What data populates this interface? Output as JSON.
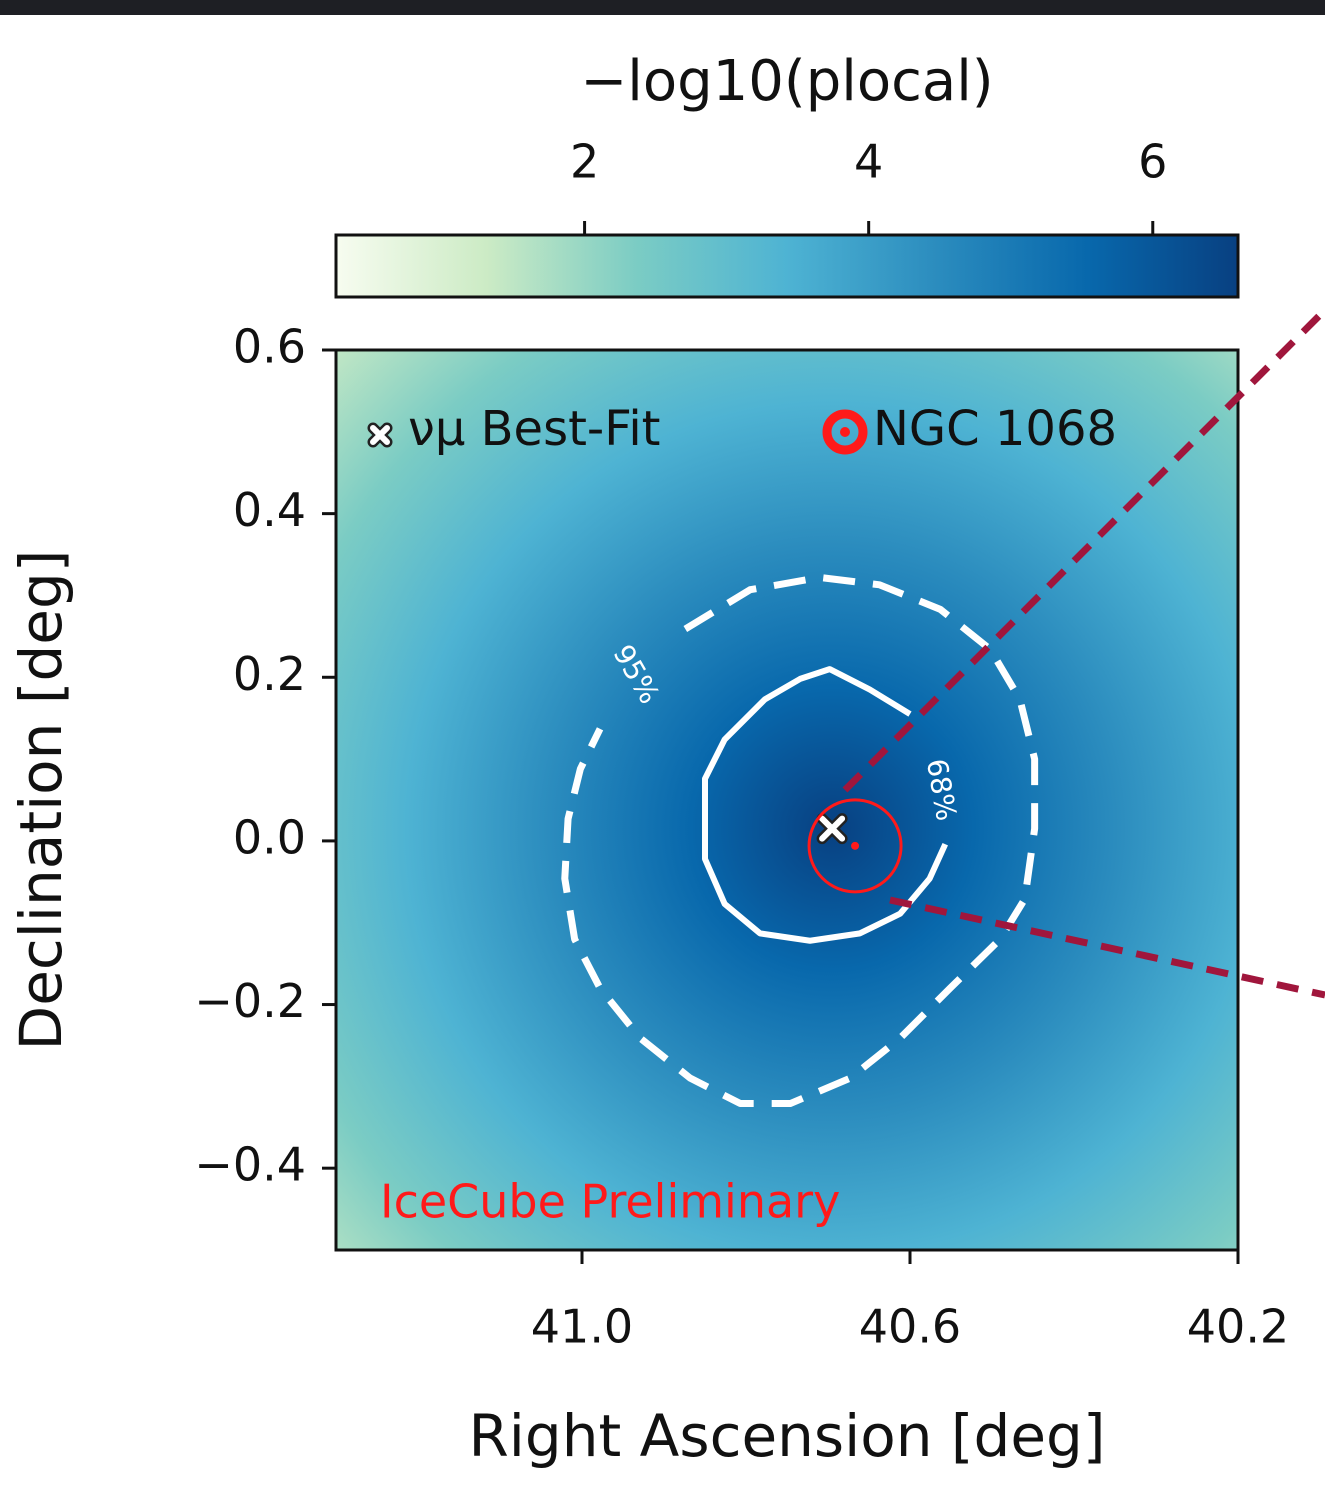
{
  "chart_data": {
    "type": "contour",
    "xlabel": "Right Ascension [deg]",
    "ylabel": "Declination [deg]",
    "xlim": [
      41.3,
      40.2
    ],
    "ylim": [
      -0.5,
      0.6
    ],
    "xticks": [
      {
        "value": 41,
        "label": "41.0"
      },
      40.6,
      40.2
    ],
    "yticks": [
      0.6,
      0.4,
      0.2,
      {
        "value": 0,
        "label": "0.0"
      },
      {
        "value": -0.2,
        "label": "−0.2"
      },
      {
        "value": -0.4,
        "label": "−0.4"
      }
    ],
    "colorbar": {
      "label": "−log10(plocal)",
      "lim": [
        0.25,
        6.6
      ],
      "ticks": [
        2,
        4,
        6
      ],
      "colors": [
        "#f7fcf0",
        "#ccebc5",
        "#7bccc4",
        "#4eb3d3",
        "#2b8cbe",
        "#0868ac",
        "#084081"
      ]
    },
    "contours": [
      {
        "label": "68%",
        "style": "solid",
        "color": "#ffffff",
        "x": [
          40.557,
          40.576,
          40.612,
          40.661,
          40.722,
          40.783,
          40.826,
          40.85,
          40.85,
          40.826,
          40.777,
          40.734,
          40.698,
          40.649,
          40.6
        ],
        "y": [
          -0.004,
          -0.046,
          -0.089,
          -0.113,
          -0.122,
          -0.113,
          -0.077,
          -0.022,
          0.076,
          0.124,
          0.173,
          0.198,
          0.21,
          0.185,
          0.155
        ]
      },
      {
        "label": "95%",
        "style": "dashed",
        "color": "#ffffff",
        "x": [
          40.874,
          40.795,
          40.71,
          40.637,
          40.563,
          40.502,
          40.466,
          40.448,
          40.448,
          40.46,
          40.49,
          40.551,
          40.612,
          40.673,
          40.746,
          40.807,
          40.868,
          40.929,
          40.978,
          41.009,
          41.021,
          41.017,
          41.002,
          40.978
        ],
        "y": [
          0.259,
          0.307,
          0.322,
          0.313,
          0.283,
          0.234,
          0.173,
          0.1,
          0.015,
          -0.071,
          -0.12,
          -0.18,
          -0.241,
          -0.29,
          -0.321,
          -0.321,
          -0.29,
          -0.241,
          -0.18,
          -0.12,
          -0.046,
          0.027,
          0.088,
          0.137
        ]
      }
    ],
    "series": [
      {
        "name": "νμ Best-Fit",
        "marker": "x",
        "color": "#ffffff",
        "x": [
          40.695
        ],
        "y": [
          0.015
        ]
      },
      {
        "name": "NGC 1068",
        "marker": "target",
        "color": "#ff1a1a",
        "x": [
          40.667
        ],
        "y": [
          -0.006
        ]
      }
    ],
    "annotation": "IceCube Preliminary"
  }
}
